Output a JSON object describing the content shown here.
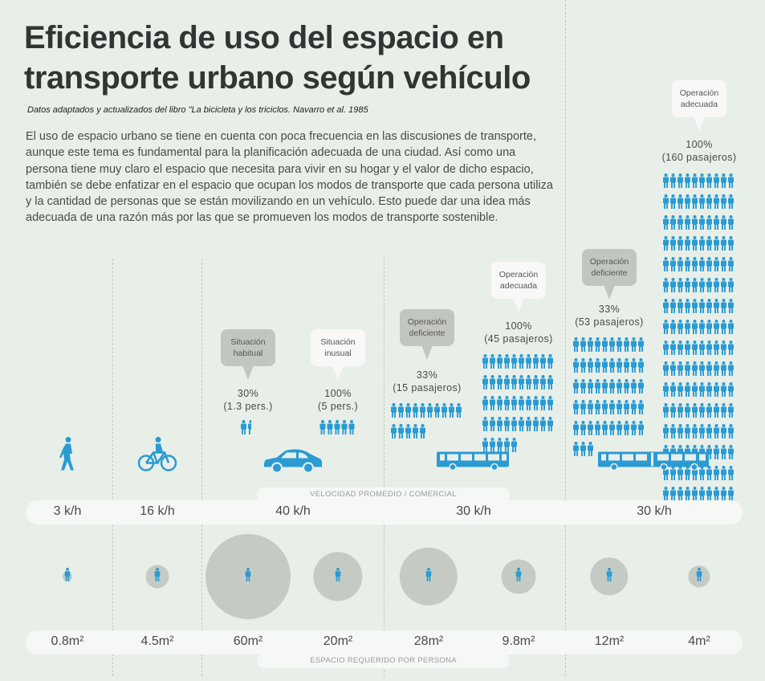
{
  "title_line1": "Eficiencia de uso del espacio en",
  "title_line2": "transporte urbano según vehículo",
  "source": "Datos adaptados y actualizados del libro \"La bicicleta y los triciclos. Navarro et al. 1985",
  "intro": "El uso de espacio urbano se tiene en cuenta con poca frecuencia en las discusiones de transporte, aunque este tema es fundamental para la planificación adecuada de una ciudad. Así como una persona tiene muy claro el espacio que necesita para vivir en su hogar y el valor de dicho espacio, también se debe enfatizar en el espacio que ocupan los modos de transporte que cada persona utiliza y la cantidad de personas que se están movilizando en un vehículo. Esto puede dar una idea más adecuada de una razón más por las que se promueven los modos de transporte sostenible.",
  "colors": {
    "accent": "#2a9bd3",
    "background": "#e8efe8",
    "circle": "#c5cbc4"
  },
  "speed_label": "VELOCIDAD PROMEDIO / COMERCIAL",
  "space_label": "ESPACIO REQUERIDO POR PERSONA",
  "speeds": [
    "3 k/h",
    "16 k/h",
    "40 k/h",
    "30 k/h",
    "30 k/h"
  ],
  "vehicles": [
    "pedestrian-icon",
    "bicycle-icon",
    "car-icon",
    "bus-icon",
    "articulated-bus-icon"
  ],
  "scenarios": [
    {
      "bubble": "Situación\nhabitual",
      "bubble_style": "gray",
      "pct": "30%",
      "detail": "(1.3 pers.)",
      "people": 1.3
    },
    {
      "bubble": "Situación\ninusual",
      "bubble_style": "white",
      "pct": "100%",
      "detail": "(5 pers.)",
      "people": 5
    },
    {
      "bubble": "Operación\ndeficiente",
      "bubble_style": "gray",
      "pct": "33%",
      "detail": "(15 pasajeros)",
      "people": 15
    },
    {
      "bubble": "Operación\nadecuada",
      "bubble_style": "white",
      "pct": "100%",
      "detail": "(45 pasajeros)",
      "people": 45
    },
    {
      "bubble": "Operación\ndeficiente",
      "bubble_style": "gray",
      "pct": "33%",
      "detail": "(53 pasajeros)",
      "people": 53
    },
    {
      "bubble": "Operación\nadecuada",
      "bubble_style": "white",
      "pct": "100%",
      "detail": "(160 pasajeros)",
      "people": 160
    }
  ],
  "space_per_person": [
    {
      "label": "0.8m²",
      "m2": 0.8
    },
    {
      "label": "4.5m²",
      "m2": 4.5
    },
    {
      "label": "60m²",
      "m2": 60
    },
    {
      "label": "20m²",
      "m2": 20
    },
    {
      "label": "28m²",
      "m2": 28
    },
    {
      "label": "9.8m²",
      "m2": 9.8
    },
    {
      "label": "12m²",
      "m2": 12
    },
    {
      "label": "4m²",
      "m2": 4
    }
  ]
}
